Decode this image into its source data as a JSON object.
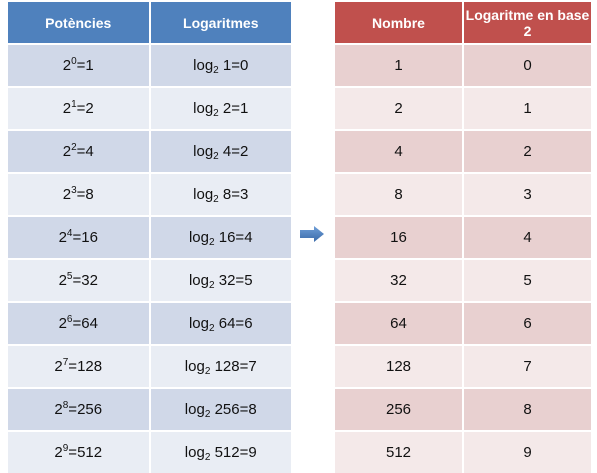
{
  "left_table": {
    "headers": [
      "Potències",
      "Logaritmes"
    ],
    "rows": [
      {
        "base": "2",
        "exp": "0",
        "pow_value": "1",
        "log": "log",
        "log_base": "2",
        "log_arg": "1",
        "log_value": "0"
      },
      {
        "base": "2",
        "exp": "1",
        "pow_value": "2",
        "log": "log",
        "log_base": "2",
        "log_arg": "2",
        "log_value": "1"
      },
      {
        "base": "2",
        "exp": "2",
        "pow_value": "4",
        "log": "log",
        "log_base": "2",
        "log_arg": "4",
        "log_value": "2"
      },
      {
        "base": "2",
        "exp": "3",
        "pow_value": "8",
        "log": "log",
        "log_base": "2",
        "log_arg": "8",
        "log_value": "3"
      },
      {
        "base": "2",
        "exp": "4",
        "pow_value": "16",
        "log": "log",
        "log_base": "2",
        "log_arg": "16",
        "log_value": "4"
      },
      {
        "base": "2",
        "exp": "5",
        "pow_value": "32",
        "log": "log",
        "log_base": "2",
        "log_arg": "32",
        "log_value": "5"
      },
      {
        "base": "2",
        "exp": "6",
        "pow_value": "64",
        "log": "log",
        "log_base": "2",
        "log_arg": "64",
        "log_value": "6"
      },
      {
        "base": "2",
        "exp": "7",
        "pow_value": "128",
        "log": "log",
        "log_base": "2",
        "log_arg": "128",
        "log_value": "7"
      },
      {
        "base": "2",
        "exp": "8",
        "pow_value": "256",
        "log": "log",
        "log_base": "2",
        "log_arg": "256",
        "log_value": "8"
      },
      {
        "base": "2",
        "exp": "9",
        "pow_value": "512",
        "log": "log",
        "log_base": "2",
        "log_arg": "512",
        "log_value": "9"
      }
    ]
  },
  "right_table": {
    "headers": [
      "Nombre",
      "Logaritme en base 2"
    ],
    "rows": [
      [
        "1",
        "0"
      ],
      [
        "2",
        "1"
      ],
      [
        "4",
        "2"
      ],
      [
        "8",
        "3"
      ],
      [
        "16",
        "4"
      ],
      [
        "32",
        "5"
      ],
      [
        "64",
        "6"
      ],
      [
        "128",
        "7"
      ],
      [
        "256",
        "8"
      ],
      [
        "512",
        "9"
      ]
    ]
  },
  "arrow": {
    "icon": "right-arrow-icon",
    "color": "#4f81bd"
  }
}
